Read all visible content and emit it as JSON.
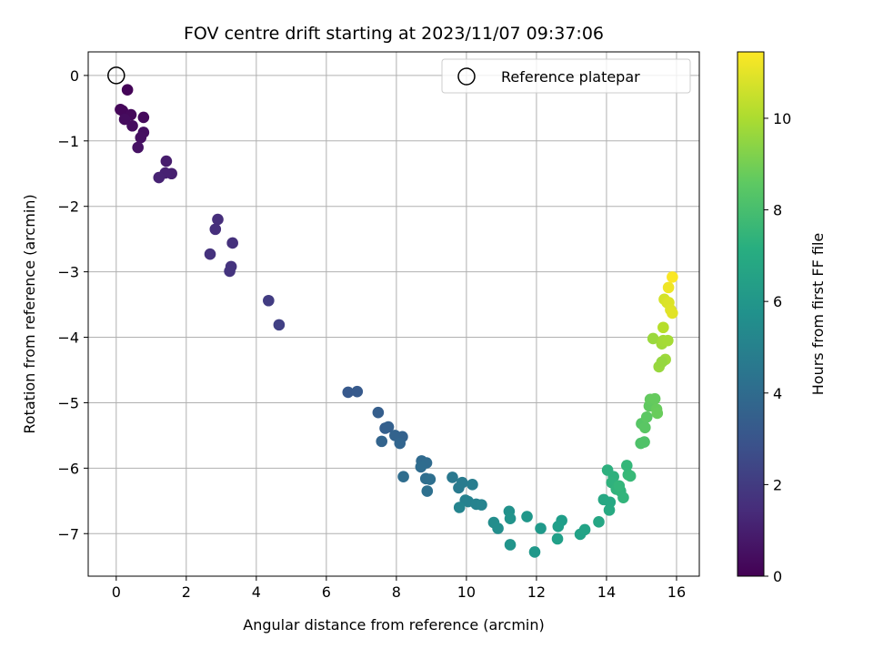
{
  "chart_data": {
    "type": "scatter",
    "title": "FOV centre drift starting at 2023/11/07 09:37:06",
    "xlabel": "Angular distance from reference (arcmin)",
    "ylabel": "Rotation from reference (arcmin)",
    "xlim": [
      -0.8,
      16.65
    ],
    "ylim": [
      -7.65,
      0.36
    ],
    "xticks": [
      0,
      2,
      4,
      6,
      8,
      10,
      12,
      14,
      16
    ],
    "yticks": [
      0,
      -1,
      -2,
      -3,
      -4,
      -5,
      -6,
      -7
    ],
    "grid": true,
    "legend": {
      "position": "top-right",
      "entries": [
        {
          "label": "Reference platepar",
          "marker": "open-circle"
        }
      ]
    },
    "reference_point": {
      "x": 0,
      "y": 0
    },
    "colorbar": {
      "label": "Hours from first FF file",
      "range": [
        0,
        11.45
      ],
      "ticks": [
        0,
        2,
        4,
        6,
        8,
        10
      ],
      "colormap": "viridis"
    },
    "points": [
      {
        "x": 0.32,
        "y": -0.22,
        "c": 0.1
      },
      {
        "x": 0.12,
        "y": -0.52,
        "c": 0.15
      },
      {
        "x": 0.18,
        "y": -0.54,
        "c": 0.2
      },
      {
        "x": 0.42,
        "y": -0.6,
        "c": 0.25
      },
      {
        "x": 0.78,
        "y": -0.64,
        "c": 0.3
      },
      {
        "x": 0.24,
        "y": -0.67,
        "c": 0.35
      },
      {
        "x": 0.46,
        "y": -0.77,
        "c": 0.4
      },
      {
        "x": 0.78,
        "y": -0.87,
        "c": 0.45
      },
      {
        "x": 0.7,
        "y": -0.95,
        "c": 0.5
      },
      {
        "x": 0.62,
        "y": -1.1,
        "c": 0.55
      },
      {
        "x": 1.43,
        "y": -1.31,
        "c": 0.9
      },
      {
        "x": 1.58,
        "y": -1.5,
        "c": 1.0
      },
      {
        "x": 1.4,
        "y": -1.49,
        "c": 1.05
      },
      {
        "x": 1.22,
        "y": -1.56,
        "c": 1.1
      },
      {
        "x": 2.9,
        "y": -2.2,
        "c": 1.5
      },
      {
        "x": 2.83,
        "y": -2.35,
        "c": 1.55
      },
      {
        "x": 3.32,
        "y": -2.56,
        "c": 1.6
      },
      {
        "x": 2.68,
        "y": -2.73,
        "c": 1.65
      },
      {
        "x": 3.28,
        "y": -2.92,
        "c": 1.7
      },
      {
        "x": 3.24,
        "y": -2.99,
        "c": 1.75
      },
      {
        "x": 4.35,
        "y": -3.44,
        "c": 2.05
      },
      {
        "x": 4.65,
        "y": -3.81,
        "c": 2.2
      },
      {
        "x": 6.62,
        "y": -4.84,
        "c": 3.2
      },
      {
        "x": 6.88,
        "y": -4.83,
        "c": 3.25
      },
      {
        "x": 7.48,
        "y": -5.15,
        "c": 3.4
      },
      {
        "x": 7.68,
        "y": -5.39,
        "c": 3.45
      },
      {
        "x": 7.77,
        "y": -5.37,
        "c": 3.5
      },
      {
        "x": 8.17,
        "y": -5.52,
        "c": 3.55
      },
      {
        "x": 7.96,
        "y": -5.5,
        "c": 3.6
      },
      {
        "x": 7.58,
        "y": -5.59,
        "c": 3.65
      },
      {
        "x": 8.1,
        "y": -5.62,
        "c": 3.7
      },
      {
        "x": 8.72,
        "y": -5.89,
        "c": 3.9
      },
      {
        "x": 8.86,
        "y": -5.92,
        "c": 3.95
      },
      {
        "x": 8.7,
        "y": -5.98,
        "c": 4.0
      },
      {
        "x": 8.2,
        "y": -6.13,
        "c": 4.05
      },
      {
        "x": 8.84,
        "y": -6.16,
        "c": 4.1
      },
      {
        "x": 8.96,
        "y": -6.17,
        "c": 4.15
      },
      {
        "x": 8.88,
        "y": -6.35,
        "c": 4.2
      },
      {
        "x": 9.6,
        "y": -6.14,
        "c": 4.6
      },
      {
        "x": 9.78,
        "y": -6.3,
        "c": 4.7
      },
      {
        "x": 9.88,
        "y": -6.22,
        "c": 4.75
      },
      {
        "x": 10.17,
        "y": -6.25,
        "c": 4.85
      },
      {
        "x": 9.97,
        "y": -6.49,
        "c": 5.0
      },
      {
        "x": 10.05,
        "y": -6.51,
        "c": 5.05
      },
      {
        "x": 10.28,
        "y": -6.55,
        "c": 5.1
      },
      {
        "x": 10.43,
        "y": -6.56,
        "c": 5.15
      },
      {
        "x": 9.8,
        "y": -6.6,
        "c": 5.2
      },
      {
        "x": 10.78,
        "y": -6.83,
        "c": 5.6
      },
      {
        "x": 10.9,
        "y": -6.92,
        "c": 5.65
      },
      {
        "x": 11.22,
        "y": -6.66,
        "c": 5.75
      },
      {
        "x": 11.25,
        "y": -6.77,
        "c": 5.85
      },
      {
        "x": 11.25,
        "y": -7.17,
        "c": 5.9
      },
      {
        "x": 11.73,
        "y": -6.74,
        "c": 6.05
      },
      {
        "x": 12.12,
        "y": -6.92,
        "c": 6.15
      },
      {
        "x": 11.95,
        "y": -7.28,
        "c": 6.1
      },
      {
        "x": 12.72,
        "y": -6.8,
        "c": 6.35
      },
      {
        "x": 12.62,
        "y": -6.89,
        "c": 6.4
      },
      {
        "x": 12.6,
        "y": -7.08,
        "c": 6.45
      },
      {
        "x": 13.25,
        "y": -7.01,
        "c": 6.55
      },
      {
        "x": 13.38,
        "y": -6.94,
        "c": 6.6
      },
      {
        "x": 13.78,
        "y": -6.82,
        "c": 6.75
      },
      {
        "x": 13.92,
        "y": -6.48,
        "c": 6.8
      },
      {
        "x": 14.1,
        "y": -6.52,
        "c": 6.85
      },
      {
        "x": 14.08,
        "y": -6.64,
        "c": 6.9
      },
      {
        "x": 14.03,
        "y": -6.03,
        "c": 7.25
      },
      {
        "x": 14.2,
        "y": -6.13,
        "c": 7.3
      },
      {
        "x": 14.15,
        "y": -6.22,
        "c": 7.35
      },
      {
        "x": 14.28,
        "y": -6.32,
        "c": 7.4
      },
      {
        "x": 14.4,
        "y": -6.35,
        "c": 7.45
      },
      {
        "x": 14.48,
        "y": -6.45,
        "c": 7.5
      },
      {
        "x": 14.58,
        "y": -5.96,
        "c": 7.6
      },
      {
        "x": 14.62,
        "y": -6.1,
        "c": 7.65
      },
      {
        "x": 14.68,
        "y": -6.12,
        "c": 7.7
      },
      {
        "x": 14.36,
        "y": -6.27,
        "c": 7.55
      },
      {
        "x": 14.98,
        "y": -5.62,
        "c": 8.2
      },
      {
        "x": 15.08,
        "y": -5.6,
        "c": 8.25
      },
      {
        "x": 15.0,
        "y": -5.32,
        "c": 8.4
      },
      {
        "x": 15.1,
        "y": -5.38,
        "c": 8.45
      },
      {
        "x": 15.15,
        "y": -5.22,
        "c": 8.5
      },
      {
        "x": 15.22,
        "y": -5.05,
        "c": 8.6
      },
      {
        "x": 15.25,
        "y": -4.95,
        "c": 8.65
      },
      {
        "x": 15.38,
        "y": -4.94,
        "c": 8.7
      },
      {
        "x": 15.43,
        "y": -5.1,
        "c": 8.75
      },
      {
        "x": 15.45,
        "y": -5.16,
        "c": 8.8
      },
      {
        "x": 15.33,
        "y": -4.02,
        "c": 9.7
      },
      {
        "x": 15.58,
        "y": -4.1,
        "c": 9.8
      },
      {
        "x": 15.62,
        "y": -4.05,
        "c": 9.85
      },
      {
        "x": 15.75,
        "y": -4.05,
        "c": 9.9
      },
      {
        "x": 15.68,
        "y": -4.34,
        "c": 9.75
      },
      {
        "x": 15.5,
        "y": -4.45,
        "c": 9.65
      },
      {
        "x": 15.58,
        "y": -4.38,
        "c": 9.6
      },
      {
        "x": 15.62,
        "y": -3.85,
        "c": 10.2
      },
      {
        "x": 15.65,
        "y": -3.42,
        "c": 10.7
      },
      {
        "x": 15.73,
        "y": -3.47,
        "c": 10.8
      },
      {
        "x": 15.78,
        "y": -3.47,
        "c": 10.85
      },
      {
        "x": 15.83,
        "y": -3.58,
        "c": 10.9
      },
      {
        "x": 15.88,
        "y": -3.63,
        "c": 10.95
      },
      {
        "x": 15.77,
        "y": -3.24,
        "c": 11.2
      },
      {
        "x": 15.88,
        "y": -3.08,
        "c": 11.4
      }
    ]
  }
}
